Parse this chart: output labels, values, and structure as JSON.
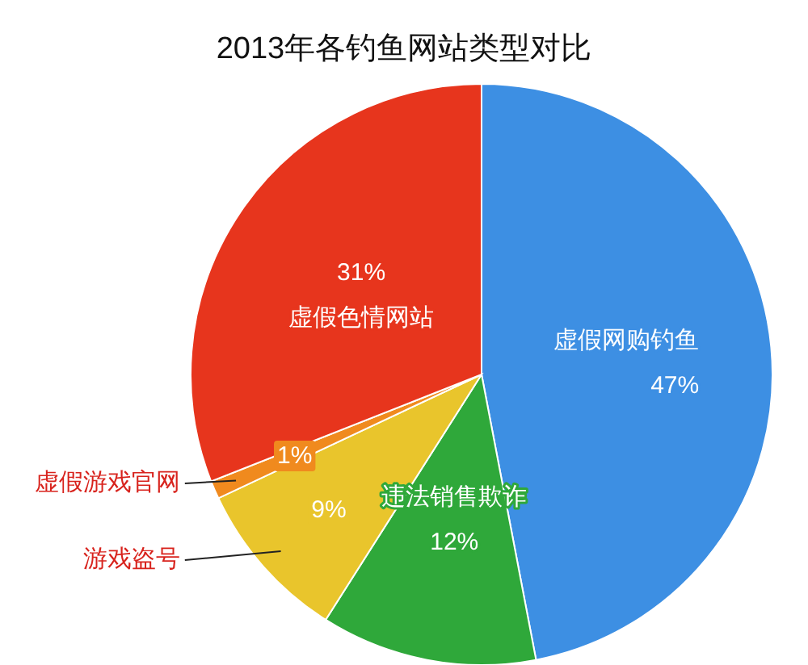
{
  "chart_data": {
    "type": "pie",
    "title": "2013年各钓鱼网站类型对比",
    "categories": [
      "虚假网购钓鱼",
      "违法销售欺诈",
      "游戏盗号",
      "虚假游戏官网",
      "虚假色情网站"
    ],
    "values": [
      47,
      12,
      9,
      1,
      31
    ],
    "colors": [
      "#3d8fe3",
      "#2fa83a",
      "#e9c52c",
      "#f08a1e",
      "#e7351d"
    ],
    "value_labels": [
      "47%",
      "12%",
      "9%",
      "1%",
      "31%"
    ]
  }
}
